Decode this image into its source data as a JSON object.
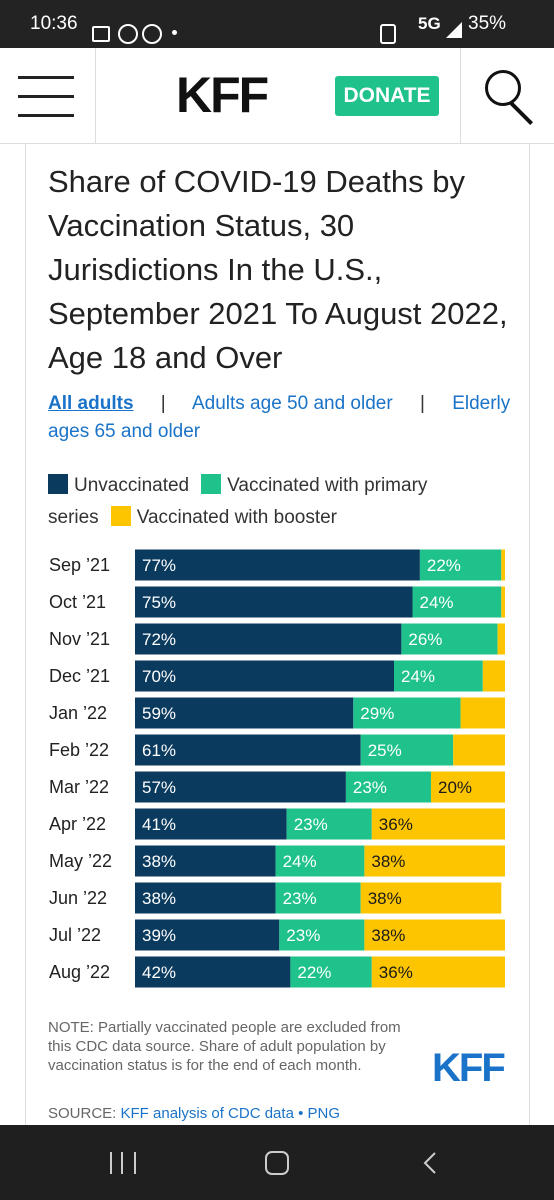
{
  "status_bar": {
    "time": "10:36",
    "network": "5G",
    "battery": "35%"
  },
  "header": {
    "logo": "KFF",
    "donate": "DONATE"
  },
  "chart_data": {
    "type": "bar",
    "orientation": "horizontal",
    "stacked": true,
    "title": "Share of COVID-19 Deaths by Vaccination Status, 30 Jurisdictions In the U.S., September 2021 To August 2022, Age 18 and Over",
    "tabs": [
      "All adults",
      "|",
      "Adults age 50 and older",
      "|",
      "Elderly ages 65 and older"
    ],
    "categories": [
      "Sep ’21",
      "Oct ’21",
      "Nov ’21",
      "Dec ’21",
      "Jan ’22",
      "Feb ’22",
      "Mar ’22",
      "Apr ’22",
      "May ’22",
      "Jun ’22",
      "Jul ’22",
      "Aug ’22"
    ],
    "series": [
      {
        "name": "Unvaccinated",
        "color": "#0b3a5f",
        "label_color": "#ffffff",
        "values": [
          77,
          75,
          72,
          70,
          59,
          61,
          57,
          41,
          38,
          38,
          39,
          42
        ],
        "value_labels": [
          "77%",
          "75%",
          "72%",
          "70%",
          "59%",
          "61%",
          "57%",
          "41%",
          "38%",
          "38%",
          "39%",
          "42%"
        ]
      },
      {
        "name": "Vaccinated with primary series",
        "color": "#1fc28a",
        "label_color": "#ffffff",
        "values": [
          22,
          24,
          26,
          24,
          29,
          25,
          23,
          23,
          24,
          23,
          23,
          22
        ],
        "value_labels": [
          "22%",
          "24%",
          "26%",
          "24%",
          "29%",
          "25%",
          "23%",
          "23%",
          "24%",
          "23%",
          "23%",
          "22%"
        ]
      },
      {
        "name": "Vaccinated with booster",
        "color": "#fcc500",
        "label_color": "#1a1a1a",
        "values": [
          1,
          1,
          2,
          6,
          12,
          14,
          20,
          36,
          38,
          38,
          38,
          36
        ],
        "value_labels": [
          null,
          null,
          null,
          null,
          null,
          null,
          "20%",
          "36%",
          "38%",
          "38%",
          "38%",
          "36%"
        ]
      }
    ],
    "xlim": [
      0,
      100
    ],
    "note": "NOTE: Partially vaccinated people are excluded from this CDC data source. Share of adult population by vaccination status is for the end of each month.",
    "source": {
      "label": "SOURCE:",
      "link": "KFF analysis of CDC data",
      "separator": "•",
      "png": "PNG"
    },
    "brand": "KFF"
  }
}
